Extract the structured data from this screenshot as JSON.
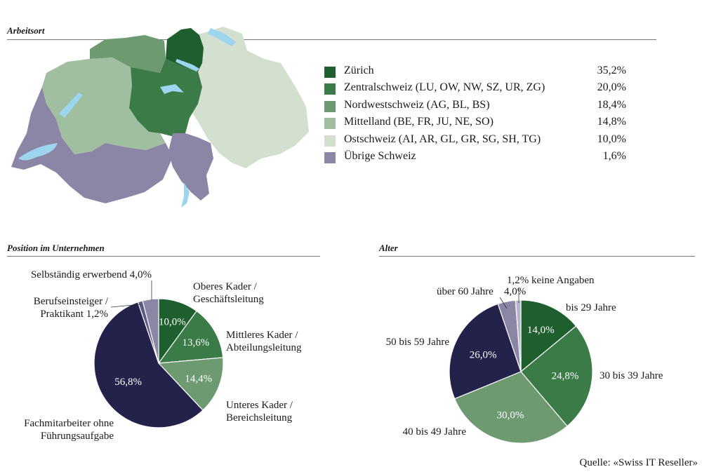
{
  "sections": {
    "arbeitsort": "Arbeitsort",
    "position": "Position im Unternehmen",
    "alter": "Alter"
  },
  "source": "Quelle: «Swiss IT Reseller»",
  "chart_data": [
    {
      "type": "pie",
      "title": "Arbeitsort",
      "note": "map of Switzerland coloured by region with legend",
      "slices": [
        {
          "label": "Zürich",
          "value": "35,2%",
          "color": "#1f5e2e"
        },
        {
          "label": "Zentralschweiz (LU, OW, NW, SZ, UR, ZG)",
          "value": "20,0%",
          "color": "#3b7b48"
        },
        {
          "label": "Nordwestschweiz (AG, BL, BS)",
          "value": "18,4%",
          "color": "#6e9a72"
        },
        {
          "label": "Mittelland (BE, FR, JU, NE, SO)",
          "value": "14,8%",
          "color": "#a0bea0"
        },
        {
          "label": "Ostschweiz (AI, AR, GL, GR, SG, SH, TG)",
          "value": "10,0%",
          "color": "#d3e0d0"
        },
        {
          "label": "Übrige Schweiz",
          "value": "1,6%",
          "color": "#8c86a6"
        }
      ]
    },
    {
      "type": "pie",
      "title": "Position im Unternehmen",
      "slices": [
        {
          "label": "Oberes Kader / Geschäftsleitung",
          "value": 10.0,
          "text": "10,0%",
          "color": "#1f5e2e"
        },
        {
          "label": "Mittleres Kader / Abteilungsleitung",
          "value": 13.6,
          "text": "13,6%",
          "color": "#3b7b48"
        },
        {
          "label": "Unteres Kader / Bereichsleitung",
          "value": 14.4,
          "text": "14,4%",
          "color": "#6e9a72"
        },
        {
          "label": "Fachmitarbeiter ohne Führungsaufgabe",
          "value": 56.8,
          "text": "56,8%",
          "color": "#22224a"
        },
        {
          "label": "Berufseinsteiger / Praktikant",
          "value": 1.2,
          "text": "1,2%",
          "color": "#5a5b86"
        },
        {
          "label": "Selbständig erwerbend",
          "value": 4.0,
          "text": "4,0%",
          "color": "#8c86a6"
        }
      ]
    },
    {
      "type": "pie",
      "title": "Alter",
      "slices": [
        {
          "label": "bis 29 Jahre",
          "value": 14.0,
          "text": "14,0%",
          "color": "#1f5e2e"
        },
        {
          "label": "30 bis 39 Jahre",
          "value": 24.8,
          "text": "24,8%",
          "color": "#3b7b48"
        },
        {
          "label": "40 bis 49 Jahre",
          "value": 30.0,
          "text": "30,0%",
          "color": "#6e9a72"
        },
        {
          "label": "50 bis 59 Jahre",
          "value": 26.0,
          "text": "26,0%",
          "color": "#22224a"
        },
        {
          "label": "über 60 Jahre",
          "value": 4.0,
          "text": "4,0%",
          "color": "#8c86a6"
        },
        {
          "label": "keine Angaben",
          "value": 1.2,
          "text": "1,2%",
          "color": "#b8b4cc"
        }
      ]
    }
  ]
}
